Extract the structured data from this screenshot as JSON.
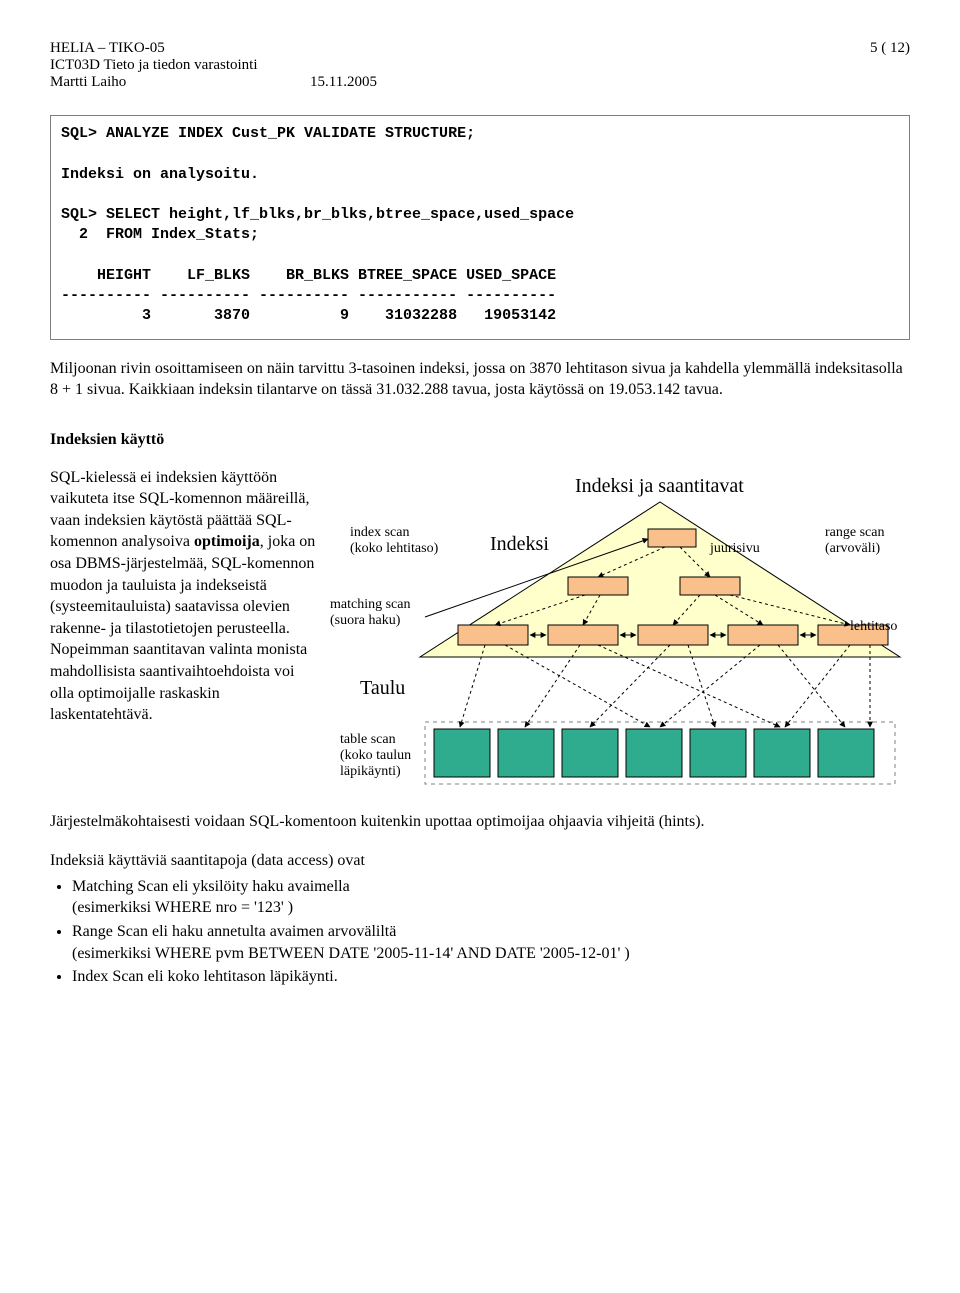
{
  "header": {
    "line1_left": "HELIA – TIKO-05",
    "line1_right": "5 ( 12)",
    "line2_left": "ICT03D  Tieto ja tiedon varastointi",
    "line3_left": "Martti Laiho",
    "line3_mid": "15.11.2005"
  },
  "sql_box": "SQL> ANALYZE INDEX Cust_PK VALIDATE STRUCTURE;\n\nIndeksi on analysoitu.\n\nSQL> SELECT height,lf_blks,br_blks,btree_space,used_space\n  2  FROM Index_Stats;\n\n    HEIGHT    LF_BLKS    BR_BLKS BTREE_SPACE USED_SPACE\n---------- ---------- ---------- ----------- ----------\n         3       3870          9    31032288   19053142",
  "para1": "Miljoonan rivin osoittamiseen on näin tarvittu 3-tasoinen indeksi, jossa on 3870 lehtitason sivua ja kahdella ylemmällä indeksitasolla 8 + 1 sivua.  Kaikkiaan indeksin tilantarve on tässä 31.032.288 tavua, josta käytössä on 19.053.142 tavua.",
  "section_title": "Indeksien käyttö",
  "left_para": "SQL-kielessä ei indeksien käyttöön vaikuteta itse SQL-komennon määreillä, vaan indeksien käytöstä päättää SQL-komennon analysoiva optimoija, joka on osa DBMS-järjestelmää, SQL-komennon muodon ja tauluista ja indekseistä (systeemitauluista) saatavissa olevien rakenne- ja tilastotietojen perusteella. Nopeimman saantitavan valinta monista mahdollisista saantivaihtoehdoista voi olla optimoijalle raskaskin laskentatehtävä.",
  "diagram": {
    "title": "Indeksi ja saantitavat",
    "labels": {
      "index_scan": "index scan\n(koko lehtitaso)",
      "indeksi": "Indeksi",
      "juurisivu": "juurisivu",
      "range_scan": "range scan\n(arvoväli)",
      "matching_scan": "matching scan\n(suora haku)",
      "lehtitaso": "lehtitaso",
      "taulu": "Taulu",
      "table_scan": "table scan\n(koko taulun\nläpikäynti)"
    },
    "colors": {
      "triangle_fill": "#ffffcc",
      "triangle_stroke": "#000000",
      "node_fill": "#f9c08c",
      "node_stroke": "#000000",
      "table_border": "#808080",
      "table_block_fill": "#2fab8e",
      "table_block_stroke": "#000000",
      "arrow": "#000000"
    }
  },
  "para_after": "Järjestelmäkohtaisesti voidaan SQL-komentoon kuitenkin upottaa optimoijaa ohjaavia vihjeitä (hints).",
  "para_access_intro": "Indeksiä käyttäviä saantitapoja (data access) ovat",
  "bullets": [
    "Matching Scan eli yksilöity haku avaimella\n(esimerkiksi   WHERE nro = '123' )",
    "Range Scan eli haku annetulta avaimen arvoväliltä\n(esimerkiksi WHERE pvm BETWEEN DATE '2005-11-14' AND DATE '2005-12-01' )",
    "Index Scan eli koko lehtitason läpikäynti."
  ]
}
